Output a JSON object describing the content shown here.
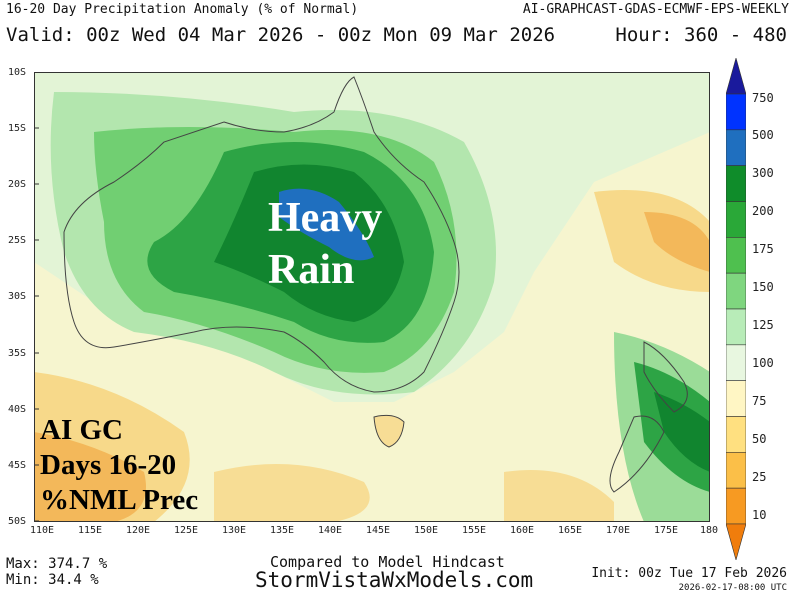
{
  "header": {
    "title": "16-20 Day Precipitation Anomaly (% of Normal)",
    "model": "AI-GRAPHCAST-GDAS-ECMWF-EPS-WEEKLY",
    "valid": "Valid: 00z Wed 04 Mar 2026 - 00z Mon 09 Mar 2026",
    "hours": "Hour: 360 - 480"
  },
  "map": {
    "overlay_heavy": "Heavy",
    "overlay_rain": "Rain",
    "label_line1": "AI GC",
    "label_line2": "Days 16-20",
    "label_line3": "%NML Prec",
    "lat_labels": [
      "10S",
      "15S",
      "20S",
      "25S",
      "30S",
      "35S",
      "40S",
      "45S",
      "50S"
    ],
    "lon_labels": [
      "110E",
      "115E",
      "120E",
      "125E",
      "130E",
      "135E",
      "140E",
      "145E",
      "150E",
      "155E",
      "160E",
      "165E",
      "170E",
      "175E",
      "180"
    ]
  },
  "colorbar": {
    "labels": [
      "750",
      "500",
      "300",
      "200",
      "175",
      "150",
      "125",
      "100",
      "75",
      "50",
      "25",
      "10"
    ],
    "colors": [
      "#1a1a9c",
      "#0033ff",
      "#1f6fbf",
      "#0f8c2a",
      "#2aa838",
      "#4fc04f",
      "#7fd67f",
      "#b8ecb8",
      "#e8f7e0",
      "#fff6c4",
      "#ffe080",
      "#fbbf48",
      "#f79a22",
      "#f07d0c"
    ]
  },
  "footer": {
    "max": "Max: 374.7 %",
    "min": "Min:  34.4 %",
    "compared": "Compared to Model Hindcast",
    "site": "StormVistaWxModels.com",
    "init": "Init: 00z Tue 17 Feb 2026",
    "stamp": "2026-02-17-08:00 UTC"
  }
}
